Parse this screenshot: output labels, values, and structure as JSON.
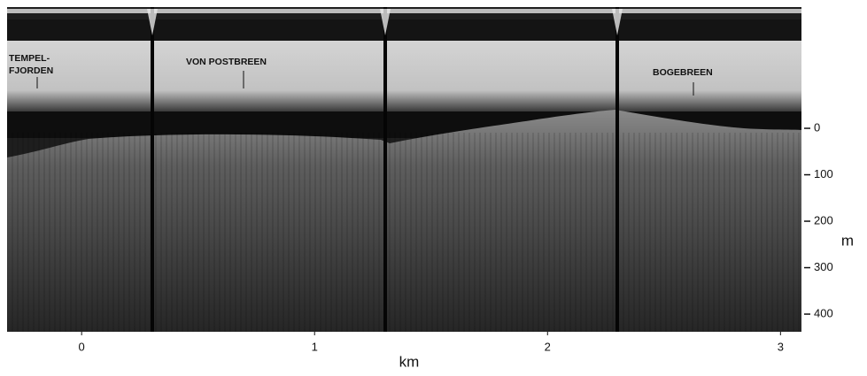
{
  "chart_data": {
    "type": "profile",
    "xlabel": "km",
    "ylabel": "m",
    "xlim": [
      -0.32,
      3.09
    ],
    "xticks": [
      0,
      1,
      2,
      3
    ],
    "ylim": [
      438,
      -261
    ],
    "yticks": [
      0,
      100,
      200,
      300,
      400
    ],
    "annotations": [
      [
        "TEMPEL-",
        "FJORDEN"
      ],
      [
        "VON POSTBREEN"
      ],
      [
        "BOGEBREEN"
      ]
    ]
  }
}
